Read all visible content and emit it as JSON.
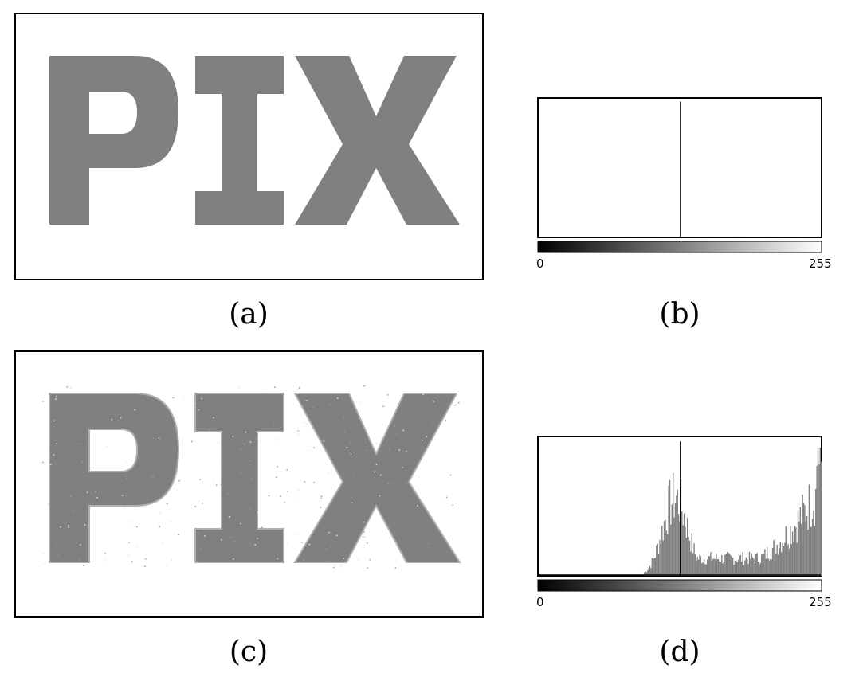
{
  "figure": {
    "captions": {
      "a": "(a)",
      "b": "(b)",
      "c": "(c)",
      "d": "(d)"
    },
    "image_text": "PIX"
  },
  "colors": {
    "gray": "#808080",
    "black": "#000000",
    "white": "#ffffff"
  },
  "chart_data": [
    {
      "type": "bar",
      "panel": "b",
      "x_min_label": "0",
      "x_max_label": "255",
      "xlim": [
        0,
        255
      ],
      "spikes": [
        {
          "x": 128,
          "height_fraction": 0.98
        }
      ],
      "gradient_bar": true
    },
    {
      "type": "bar",
      "panel": "d",
      "x_min_label": "0",
      "x_max_label": "255",
      "xlim": [
        0,
        255
      ],
      "spikes": [
        {
          "x": 128,
          "height_fraction": 0.97
        },
        {
          "x": 128,
          "height_fraction": 0.64
        }
      ],
      "distribution": "bimodal: gray noise rising from ~95, peak near 128 (~0.6), dip ~175-200, rising to ~0.7 near 255",
      "gradient_bar": true
    }
  ]
}
